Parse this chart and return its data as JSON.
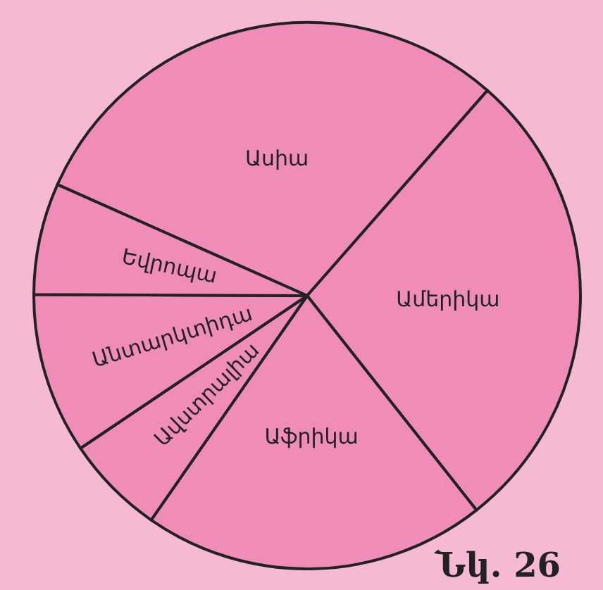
{
  "chart_data": {
    "type": "pie",
    "categories": [
      "Ասիա",
      "Ամերիկա",
      "Աֆրիկա",
      "Ավստրալիա",
      "Անտարկտիդա",
      "Եվրոպա"
    ],
    "values": [
      29.8,
      27.9,
      20.3,
      5.9,
      9.5,
      6.6
    ],
    "colors": [
      "#f08cb8",
      "#f08cb8",
      "#f08cb8",
      "#f08cb8",
      "#f08cb8",
      "#f08cb8"
    ],
    "annotations": [
      "Նկ. 26"
    ],
    "legend": false
  }
}
